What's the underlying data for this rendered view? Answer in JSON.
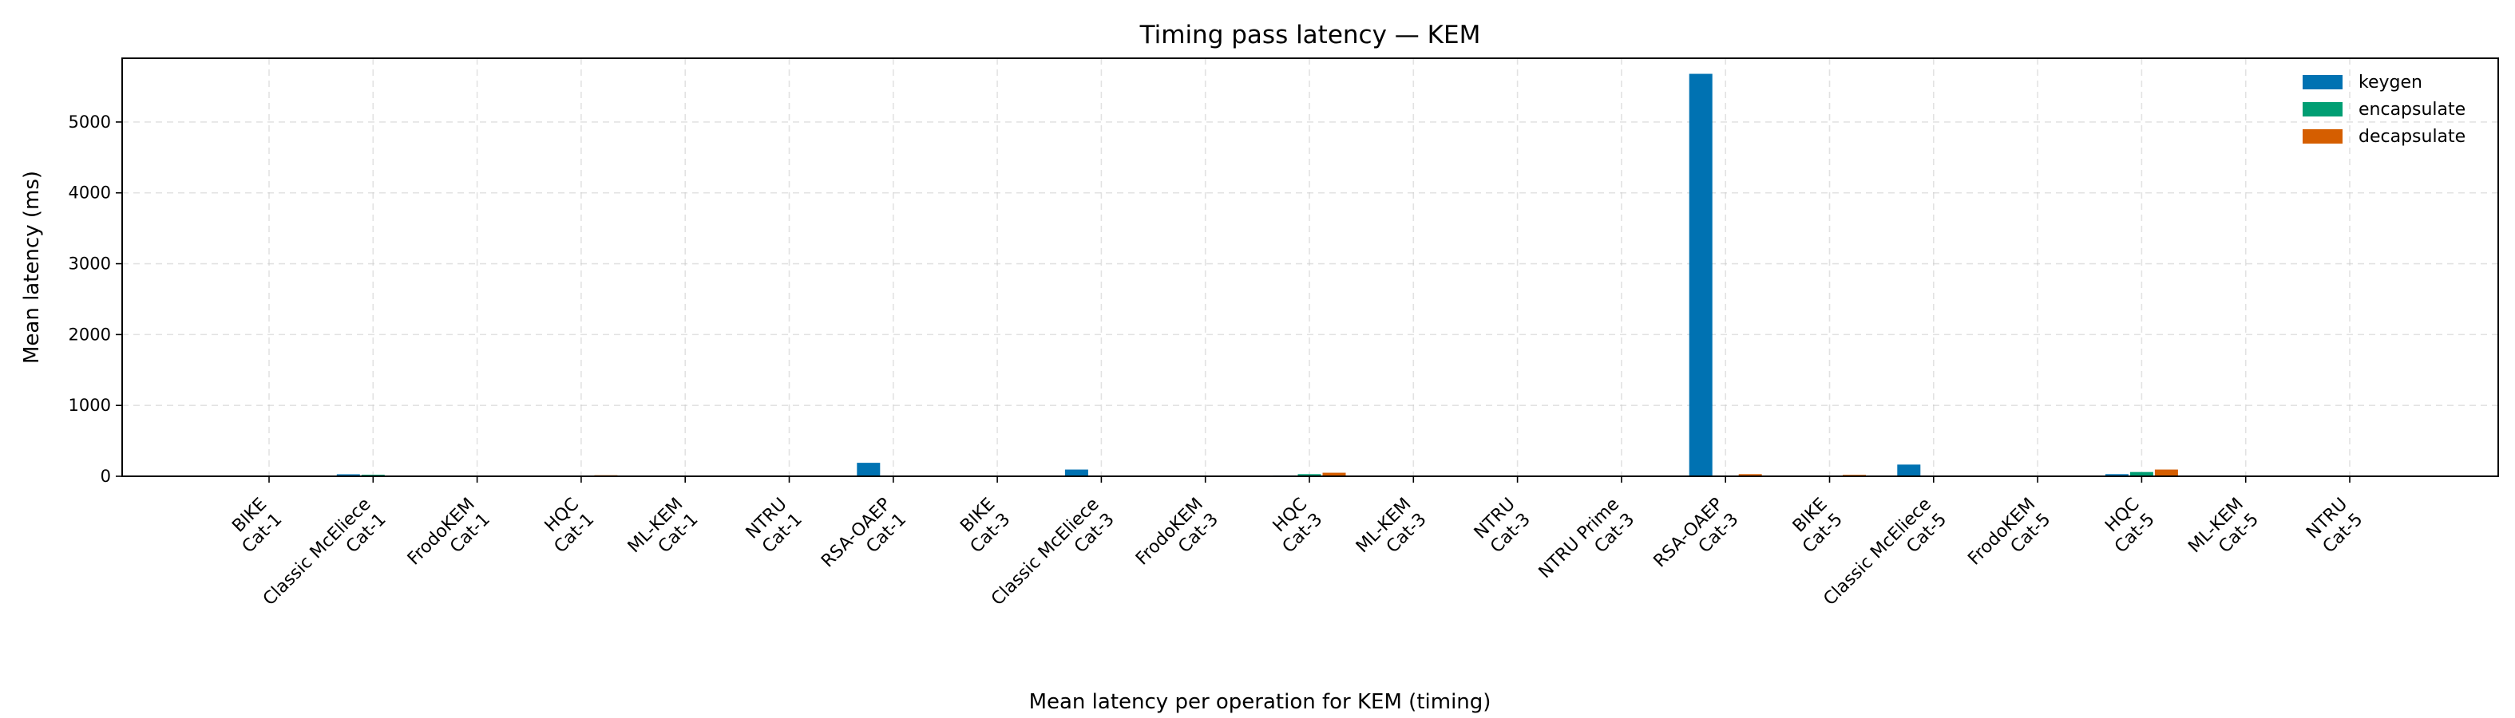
{
  "chart_data": {
    "type": "bar",
    "title": "Timing pass latency — KEM",
    "xlabel": "Mean latency per operation for KEM (timing)",
    "ylabel": "Mean latency (ms)",
    "ylim": [
      0,
      5900
    ],
    "yticks": [
      0,
      1000,
      2000,
      3000,
      4000,
      5000
    ],
    "grid": true,
    "legend_position": "top-right",
    "categories": [
      [
        "BIKE",
        "Cat-1"
      ],
      [
        "Classic McEliece",
        "Cat-1"
      ],
      [
        "FrodoKEM",
        "Cat-1"
      ],
      [
        "HQC",
        "Cat-1"
      ],
      [
        "ML-KEM",
        "Cat-1"
      ],
      [
        "NTRU",
        "Cat-1"
      ],
      [
        "RSA-OAEP",
        "Cat-1"
      ],
      [
        "BIKE",
        "Cat-3"
      ],
      [
        "Classic McEliece",
        "Cat-3"
      ],
      [
        "FrodoKEM",
        "Cat-3"
      ],
      [
        "HQC",
        "Cat-3"
      ],
      [
        "ML-KEM",
        "Cat-3"
      ],
      [
        "NTRU",
        "Cat-3"
      ],
      [
        "NTRU Prime",
        "Cat-3"
      ],
      [
        "RSA-OAEP",
        "Cat-3"
      ],
      [
        "BIKE",
        "Cat-5"
      ],
      [
        "Classic McEliece",
        "Cat-5"
      ],
      [
        "FrodoKEM",
        "Cat-5"
      ],
      [
        "HQC",
        "Cat-5"
      ],
      [
        "ML-KEM",
        "Cat-5"
      ],
      [
        "NTRU",
        "Cat-5"
      ]
    ],
    "series": [
      {
        "name": "keygen",
        "color": "#0072B2",
        "values": [
          3,
          28,
          1,
          3,
          0.1,
          2,
          190,
          5,
          95,
          2,
          12,
          0.1,
          4,
          6,
          5680,
          8,
          165,
          3,
          30,
          0.1,
          6
        ]
      },
      {
        "name": "encapsulate",
        "color": "#009E73",
        "values": [
          1,
          22,
          1,
          8,
          0.1,
          0.5,
          2,
          2,
          4,
          2,
          30,
          0.1,
          0.5,
          1,
          4,
          3,
          6,
          3,
          60,
          0.1,
          1
        ]
      },
      {
        "name": "decapsulate",
        "color": "#D55E00",
        "values": [
          5,
          6,
          1,
          15,
          0.1,
          1,
          6,
          10,
          8,
          2,
          50,
          0.1,
          1,
          2,
          30,
          20,
          10,
          3,
          95,
          0.1,
          2
        ]
      }
    ]
  }
}
